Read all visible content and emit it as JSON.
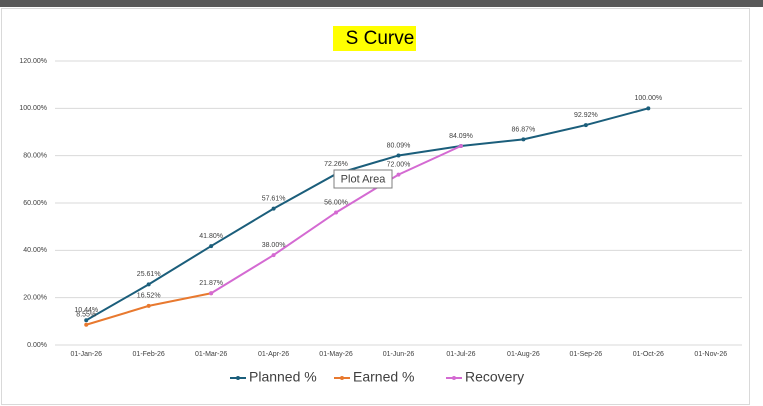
{
  "chart_data": {
    "type": "line",
    "title": "S Curve",
    "tooltip": "Plot Area",
    "categories": [
      "01-Jan-26",
      "01-Feb-26",
      "01-Mar-26",
      "01-Apr-26",
      "01-May-26",
      "01-Jun-26",
      "01-Jul-26",
      "01-Aug-26",
      "01-Sep-26",
      "01-Oct-26",
      "01-Nov-26"
    ],
    "series": [
      {
        "name": "Planned %",
        "color": "#1b5e7b",
        "values": [
          10.44,
          25.61,
          41.8,
          57.61,
          72.26,
          80.09,
          84.09,
          86.87,
          92.92,
          100.0,
          null
        ],
        "value_labels": [
          "10.44%",
          "25.61%",
          "41.80%",
          "57.61%",
          "72.26%",
          "80.09%",
          "84.09%",
          "86.87%",
          "92.92%",
          "100.00%",
          null
        ]
      },
      {
        "name": "Earned %",
        "color": "#e8792f",
        "values": [
          8.55,
          16.52,
          21.87,
          null,
          null,
          null,
          null,
          null,
          null,
          null,
          null
        ],
        "value_labels": [
          "8.55%",
          "16.52%",
          "21.87%",
          null,
          null,
          null,
          null,
          null,
          null,
          null,
          null
        ]
      },
      {
        "name": "Recovery",
        "color": "#d46ad2",
        "values": [
          null,
          null,
          21.87,
          38.0,
          56.0,
          72.0,
          84.09,
          null,
          null,
          null,
          null
        ],
        "value_labels": [
          null,
          null,
          null,
          "38.00%",
          "56.00%",
          "72.00%",
          null,
          null,
          null,
          null,
          null
        ]
      }
    ],
    "ylim": [
      0,
      120
    ],
    "yticks": [
      {
        "value": 0,
        "label": "0.00%"
      },
      {
        "value": 20,
        "label": "20.00%"
      },
      {
        "value": 40,
        "label": "40.00%"
      },
      {
        "value": 60,
        "label": "60.00%"
      },
      {
        "value": 80,
        "label": "80.00%"
      },
      {
        "value": 100,
        "label": "100.00%"
      },
      {
        "value": 120,
        "label": "120.00%"
      }
    ],
    "grid": true,
    "legend": "bottom"
  }
}
